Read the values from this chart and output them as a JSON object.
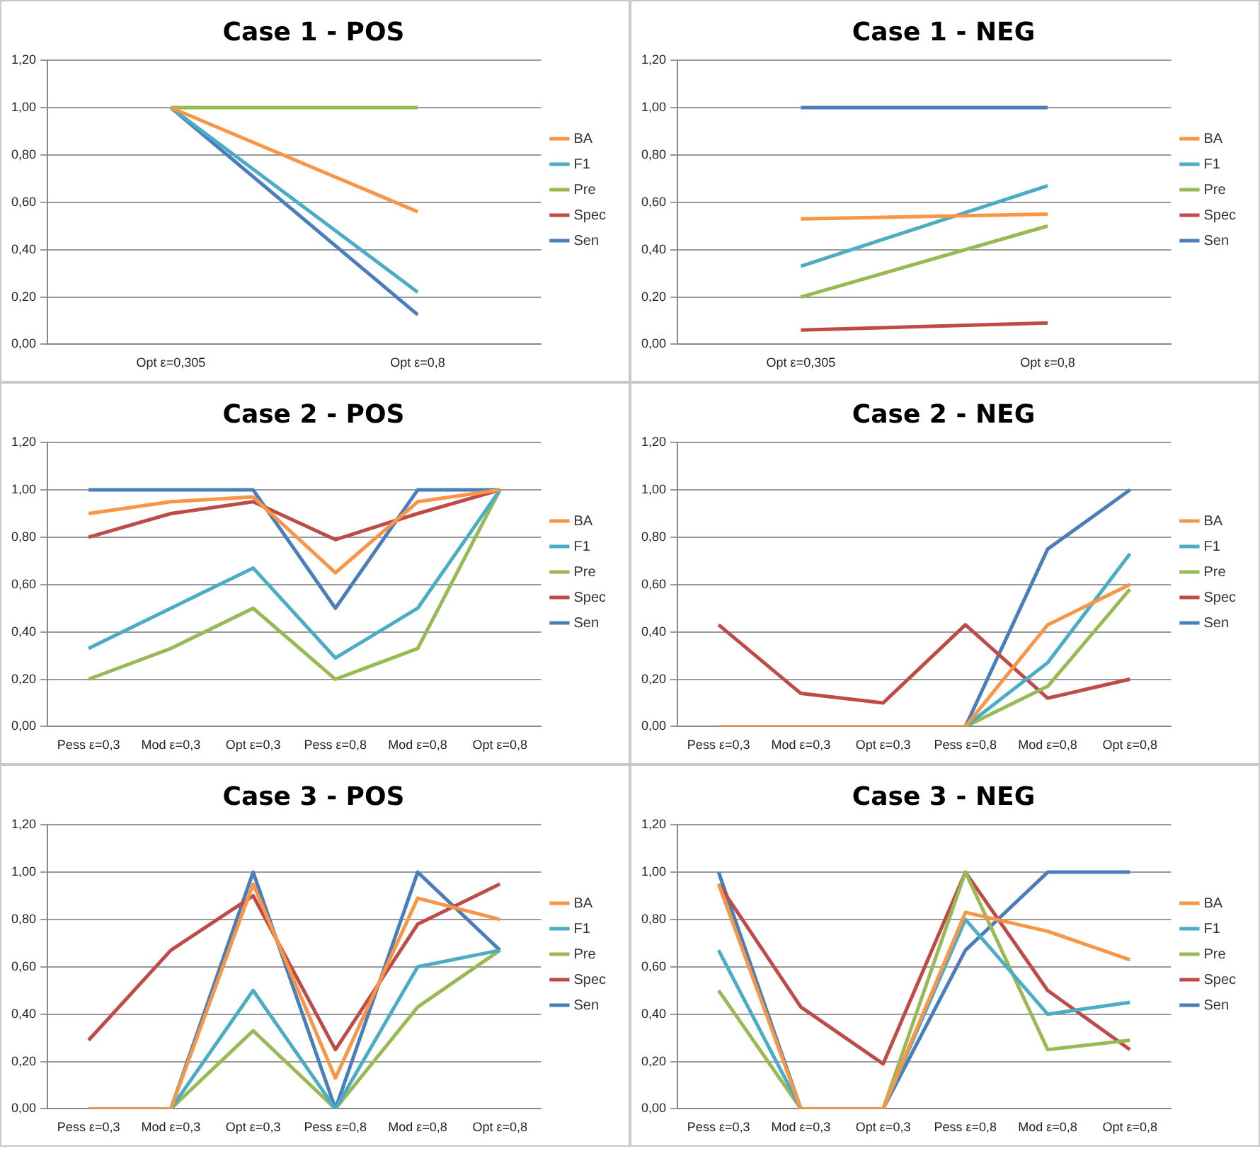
{
  "chart_data": [
    {
      "type": "line",
      "title": "Case 1 - POS",
      "categories": [
        "Opt ε=0,305",
        "Opt ε=0,8"
      ],
      "ylim": [
        0,
        1.2
      ],
      "yticks": [
        {
          "value": 0,
          "label": "0,00"
        },
        {
          "value": 0.2,
          "label": "0,20"
        },
        {
          "value": 0.4,
          "label": "0,40"
        },
        {
          "value": 0.6,
          "label": "0,60"
        },
        {
          "value": 0.8,
          "label": "0,80"
        },
        {
          "value": 1,
          "label": "1,00"
        },
        {
          "value": 1.2,
          "label": "1,20"
        }
      ],
      "grid": "y",
      "legend": "right",
      "marker": "none",
      "series": [
        {
          "name": "Sen",
          "color": "#4a7ebb",
          "values": [
            1,
            0.125
          ]
        },
        {
          "name": "Spec",
          "color": "#be4b48",
          "values": [
            null,
            null
          ]
        },
        {
          "name": "Pre",
          "color": "#98b954",
          "values": [
            1,
            1
          ]
        },
        {
          "name": "F1",
          "color": "#4bacc6",
          "values": [
            1,
            0.22
          ]
        },
        {
          "name": "BA",
          "color": "#f79646",
          "values": [
            1,
            0.56
          ]
        }
      ]
    },
    {
      "type": "line",
      "title": "Case 1 - NEG",
      "categories": [
        "Opt ε=0,305",
        "Opt ε=0,8"
      ],
      "ylim": [
        0,
        1.2
      ],
      "yticks": [
        {
          "value": 0,
          "label": "0,00"
        },
        {
          "value": 0.2,
          "label": "0,20"
        },
        {
          "value": 0.4,
          "label": "0,40"
        },
        {
          "value": 0.6,
          "label": "0,60"
        },
        {
          "value": 0.8,
          "label": "0,80"
        },
        {
          "value": 1,
          "label": "1,00"
        },
        {
          "value": 1.2,
          "label": "1,20"
        }
      ],
      "grid": "y",
      "legend": "right",
      "marker": "none",
      "series": [
        {
          "name": "Sen",
          "color": "#4a7ebb",
          "values": [
            1,
            1
          ]
        },
        {
          "name": "Spec",
          "color": "#be4b48",
          "values": [
            0.06,
            0.09
          ]
        },
        {
          "name": "Pre",
          "color": "#98b954",
          "values": [
            0.2,
            0.5
          ]
        },
        {
          "name": "F1",
          "color": "#4bacc6",
          "values": [
            0.33,
            0.67
          ]
        },
        {
          "name": "BA",
          "color": "#f79646",
          "values": [
            0.53,
            0.55
          ]
        }
      ]
    },
    {
      "type": "line",
      "title": "Case 2 - POS",
      "categories": [
        "Pess ε=0,3",
        "Mod ε=0,3",
        "Opt ε=0,3",
        "Pess ε=0,8",
        "Mod ε=0,8",
        "Opt ε=0,8"
      ],
      "ylim": [
        0,
        1.2
      ],
      "yticks": [
        {
          "value": 0,
          "label": "0,00"
        },
        {
          "value": 0.2,
          "label": "0,20"
        },
        {
          "value": 0.4,
          "label": "0,40"
        },
        {
          "value": 0.6,
          "label": "0,60"
        },
        {
          "value": 0.8,
          "label": "0,80"
        },
        {
          "value": 1,
          "label": "1,00"
        },
        {
          "value": 1.2,
          "label": "1,20"
        }
      ],
      "grid": "y",
      "legend": "right",
      "marker": "none",
      "series": [
        {
          "name": "Sen",
          "color": "#4a7ebb",
          "values": [
            1,
            1,
            1,
            0.5,
            1,
            1
          ]
        },
        {
          "name": "Spec",
          "color": "#be4b48",
          "values": [
            0.8,
            0.9,
            0.95,
            0.79,
            0.9,
            1
          ]
        },
        {
          "name": "Pre",
          "color": "#98b954",
          "values": [
            0.2,
            0.33,
            0.5,
            0.2,
            0.33,
            1
          ]
        },
        {
          "name": "F1",
          "color": "#4bacc6",
          "values": [
            0.33,
            0.5,
            0.67,
            0.29,
            0.5,
            1
          ]
        },
        {
          "name": "BA",
          "color": "#f79646",
          "values": [
            0.9,
            0.95,
            0.97,
            0.65,
            0.95,
            1
          ]
        }
      ]
    },
    {
      "type": "line",
      "title": "Case 2 - NEG",
      "categories": [
        "Pess ε=0,3",
        "Mod ε=0,3",
        "Opt ε=0,3",
        "Pess ε=0,8",
        "Mod ε=0,8",
        "Opt ε=0,8"
      ],
      "ylim": [
        0,
        1.2
      ],
      "yticks": [
        {
          "value": 0,
          "label": "0,00"
        },
        {
          "value": 0.2,
          "label": "0,20"
        },
        {
          "value": 0.4,
          "label": "0,40"
        },
        {
          "value": 0.6,
          "label": "0,60"
        },
        {
          "value": 0.8,
          "label": "0,80"
        },
        {
          "value": 1,
          "label": "1,00"
        },
        {
          "value": 1.2,
          "label": "1,20"
        }
      ],
      "grid": "y",
      "legend": "right",
      "marker": "none",
      "series": [
        {
          "name": "Sen",
          "color": "#4a7ebb",
          "values": [
            null,
            null,
            null,
            0,
            0.75,
            1
          ]
        },
        {
          "name": "Spec",
          "color": "#be4b48",
          "values": [
            0.43,
            0.14,
            0.1,
            0.43,
            0.12,
            0.2
          ]
        },
        {
          "name": "Pre",
          "color": "#98b954",
          "values": [
            null,
            null,
            null,
            0,
            0.17,
            0.58
          ]
        },
        {
          "name": "F1",
          "color": "#4bacc6",
          "values": [
            null,
            null,
            null,
            0,
            0.27,
            0.73
          ]
        },
        {
          "name": "BA",
          "color": "#f79646",
          "values": [
            0,
            0,
            0,
            0,
            0.43,
            0.6
          ]
        }
      ]
    },
    {
      "type": "line",
      "title": "Case 3 - POS",
      "categories": [
        "Pess ε=0,3",
        "Mod ε=0,3",
        "Opt ε=0,3",
        "Pess ε=0,8",
        "Mod ε=0,8",
        "Opt ε=0,8"
      ],
      "ylim": [
        0,
        1.2
      ],
      "yticks": [
        {
          "value": 0,
          "label": "0,00"
        },
        {
          "value": 0.2,
          "label": "0,20"
        },
        {
          "value": 0.4,
          "label": "0,40"
        },
        {
          "value": 0.6,
          "label": "0,60"
        },
        {
          "value": 0.8,
          "label": "0,80"
        },
        {
          "value": 1,
          "label": "1,00"
        },
        {
          "value": 1.2,
          "label": "1,20"
        }
      ],
      "grid": "y",
      "legend": "right",
      "marker": "none",
      "series": [
        {
          "name": "Sen",
          "color": "#4a7ebb",
          "values": [
            null,
            0,
            1,
            0,
            1,
            0.67
          ]
        },
        {
          "name": "Spec",
          "color": "#be4b48",
          "values": [
            0.29,
            0.67,
            0.9,
            0.25,
            0.78,
            0.95
          ]
        },
        {
          "name": "Pre",
          "color": "#98b954",
          "values": [
            null,
            0,
            0.33,
            0,
            0.43,
            0.67
          ]
        },
        {
          "name": "F1",
          "color": "#4bacc6",
          "values": [
            null,
            0,
            0.5,
            0,
            0.6,
            0.67
          ]
        },
        {
          "name": "BA",
          "color": "#f79646",
          "values": [
            0,
            0,
            0.95,
            0.13,
            0.89,
            0.8
          ]
        }
      ]
    },
    {
      "type": "line",
      "title": "Case 3 - NEG",
      "categories": [
        "Pess ε=0,3",
        "Mod ε=0,3",
        "Opt ε=0,3",
        "Pess ε=0,8",
        "Mod ε=0,8",
        "Opt ε=0,8"
      ],
      "ylim": [
        0,
        1.2
      ],
      "yticks": [
        {
          "value": 0,
          "label": "0,00"
        },
        {
          "value": 0.2,
          "label": "0,20"
        },
        {
          "value": 0.4,
          "label": "0,40"
        },
        {
          "value": 0.6,
          "label": "0,60"
        },
        {
          "value": 0.8,
          "label": "0,80"
        },
        {
          "value": 1,
          "label": "1,00"
        },
        {
          "value": 1.2,
          "label": "1,20"
        }
      ],
      "grid": "y",
      "legend": "right",
      "marker": "none",
      "series": [
        {
          "name": "Sen",
          "color": "#4a7ebb",
          "values": [
            1,
            0,
            0,
            0.67,
            1,
            1
          ]
        },
        {
          "name": "Spec",
          "color": "#be4b48",
          "values": [
            0.95,
            0.43,
            0.19,
            1,
            0.5,
            0.25
          ]
        },
        {
          "name": "Pre",
          "color": "#98b954",
          "values": [
            0.5,
            0,
            0,
            1,
            0.25,
            0.29
          ]
        },
        {
          "name": "F1",
          "color": "#4bacc6",
          "values": [
            0.67,
            0,
            0,
            0.8,
            0.4,
            0.45
          ]
        },
        {
          "name": "BA",
          "color": "#f79646",
          "values": [
            0.95,
            0,
            0,
            0.83,
            0.75,
            0.63
          ]
        }
      ]
    }
  ]
}
